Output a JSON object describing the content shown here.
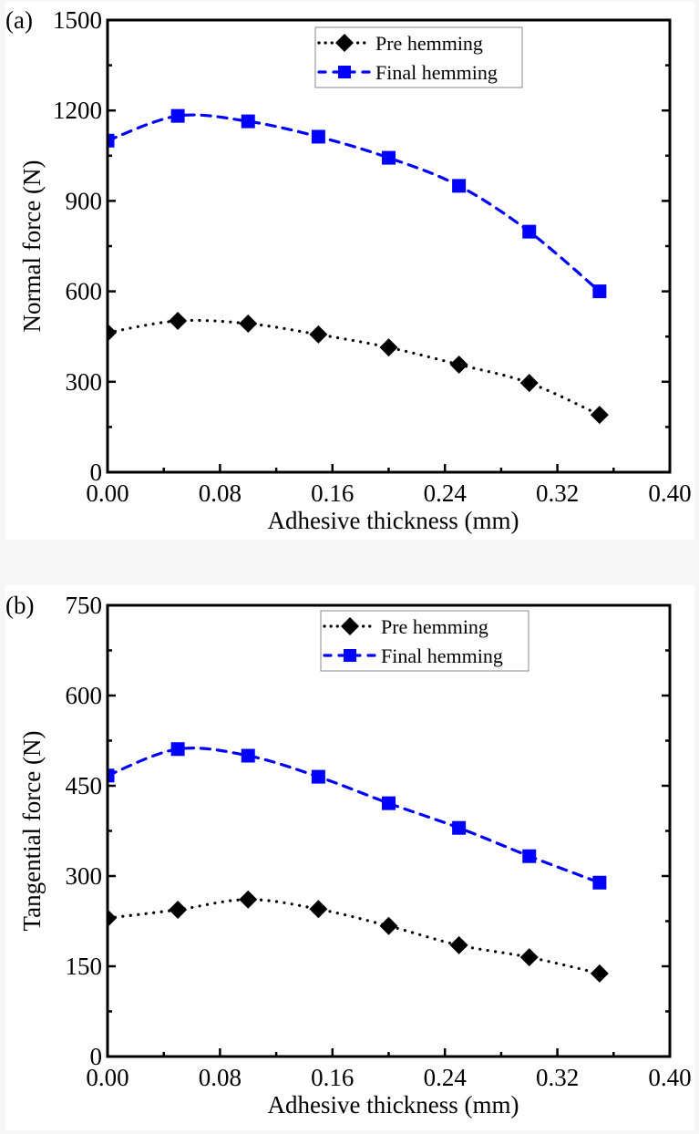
{
  "chart_data": [
    {
      "type": "line",
      "panel_label": "(a)",
      "title": "",
      "xlabel": "Adhesive thickness (mm)",
      "ylabel": "Normal force (N)",
      "xlim": [
        0,
        0.4
      ],
      "ylim": [
        0,
        1500
      ],
      "xticks": [
        "0.00",
        "0.08",
        "0.16",
        "0.24",
        "0.32",
        "0.40"
      ],
      "yticks": [
        "0",
        "300",
        "600",
        "900",
        "1200",
        "1500"
      ],
      "grid": false,
      "legend_position": "top-right",
      "x": [
        0,
        0.05,
        0.1,
        0.15,
        0.2,
        0.25,
        0.3,
        0.35
      ],
      "series": [
        {
          "name": "Pre hemming",
          "color": "#000000",
          "marker": "diamond",
          "line_style": "dotted",
          "values": [
            463,
            502,
            493,
            457,
            414,
            357,
            296,
            190
          ]
        },
        {
          "name": "Final hemming",
          "color": "#0000ff",
          "marker": "square",
          "line_style": "dashed",
          "values": [
            1100,
            1182,
            1164,
            1113,
            1043,
            950,
            798,
            600
          ]
        }
      ]
    },
    {
      "type": "line",
      "panel_label": "(b)",
      "title": "",
      "xlabel": "Adhesive thickness (mm)",
      "ylabel": "Tangential force (N)",
      "xlim": [
        0,
        0.4
      ],
      "ylim": [
        0,
        750
      ],
      "xticks": [
        "0.00",
        "0.08",
        "0.16",
        "0.24",
        "0.32",
        "0.40"
      ],
      "yticks": [
        "0",
        "150",
        "300",
        "450",
        "600",
        "750"
      ],
      "grid": false,
      "legend_position": "top-right",
      "x": [
        0,
        0.05,
        0.1,
        0.15,
        0.2,
        0.25,
        0.3,
        0.35
      ],
      "series": [
        {
          "name": "Pre hemming",
          "color": "#000000",
          "marker": "diamond",
          "line_style": "dotted",
          "values": [
            230,
            244,
            261,
            245,
            217,
            185,
            165,
            138
          ]
        },
        {
          "name": "Final hemming",
          "color": "#0000ff",
          "marker": "square",
          "line_style": "dashed",
          "values": [
            467,
            511,
            500,
            465,
            421,
            380,
            333,
            289
          ]
        }
      ]
    }
  ]
}
